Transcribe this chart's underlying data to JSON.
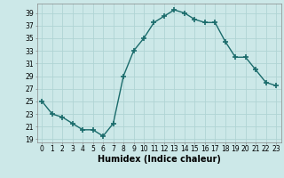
{
  "x": [
    0,
    1,
    2,
    3,
    4,
    5,
    6,
    7,
    8,
    9,
    10,
    11,
    12,
    13,
    14,
    15,
    16,
    17,
    18,
    19,
    20,
    21,
    22,
    23
  ],
  "y": [
    25,
    23,
    22.5,
    21.5,
    20.5,
    20.5,
    19.5,
    21.5,
    29,
    33,
    35,
    37.5,
    38.5,
    39.5,
    39,
    38,
    37.5,
    37.5,
    34.5,
    32,
    32,
    30,
    28,
    27.5
  ],
  "line_color": "#1a6b6b",
  "marker": "+",
  "marker_size": 4,
  "linewidth": 1.0,
  "bg_color": "#cce8e8",
  "grid_color": "#b0d4d4",
  "xlabel": "Humidex (Indice chaleur)",
  "xlim": [
    -0.5,
    23.5
  ],
  "ylim": [
    18.5,
    40.5
  ],
  "yticks": [
    19,
    21,
    23,
    25,
    27,
    29,
    31,
    33,
    35,
    37,
    39
  ],
  "xtick_labels": [
    "0",
    "1",
    "2",
    "3",
    "4",
    "5",
    "6",
    "7",
    "8",
    "9",
    "10",
    "11",
    "12",
    "13",
    "14",
    "15",
    "16",
    "17",
    "18",
    "19",
    "20",
    "21",
    "22",
    "23"
  ],
  "label_fontsize": 7,
  "tick_fontsize": 5.5
}
